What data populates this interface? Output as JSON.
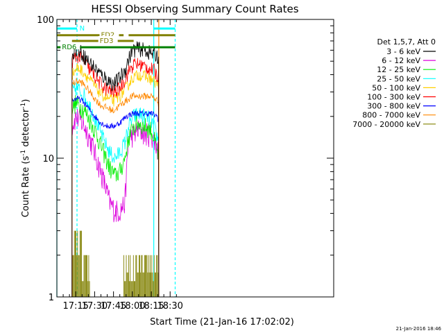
{
  "chart_data": {
    "type": "line",
    "title": "HESSI Observing Summary Count Rates",
    "xlabel": "Start Time (21-Jan-16 17:02:02)",
    "ylabel_main": "Count Rate (s",
    "ylabel_sup1": "-1",
    "ylabel_mid": " detector",
    "ylabel_sup2": "-1",
    "ylabel_end": ")",
    "yscale": "log",
    "ylim": [
      1,
      100
    ],
    "xlim_min": [
      1020,
      1240
    ],
    "xticks": [
      {
        "t": 1035,
        "label": "17:15"
      },
      {
        "t": 1050,
        "label": "17:30"
      },
      {
        "t": 1065,
        "label": "17:45"
      },
      {
        "t": 1080,
        "label": "18:00"
      },
      {
        "t": 1095,
        "label": "18:15"
      },
      {
        "t": 1110,
        "label": "18:30"
      }
    ],
    "yticks": [
      {
        "v": 1,
        "label": "1"
      },
      {
        "v": 10,
        "label": "10"
      },
      {
        "v": 100,
        "label": "100"
      }
    ],
    "legend_header": "Det 1,5,7, Att 0",
    "series": [
      {
        "name": "3 - 6 keV",
        "color": "#000000",
        "start": 1032,
        "end": 1101,
        "noise": 0.13,
        "knots": [
          [
            1032,
            58
          ],
          [
            1036,
            62
          ],
          [
            1040,
            57
          ],
          [
            1045,
            50
          ],
          [
            1050,
            45
          ],
          [
            1055,
            40
          ],
          [
            1060,
            37
          ],
          [
            1065,
            34
          ],
          [
            1070,
            38
          ],
          [
            1074,
            43
          ],
          [
            1077,
            52
          ],
          [
            1080,
            60
          ],
          [
            1085,
            62
          ],
          [
            1090,
            60
          ],
          [
            1095,
            57
          ],
          [
            1100,
            55
          ],
          [
            1101,
            50
          ]
        ]
      },
      {
        "name": "6 - 12 keV",
        "color": "#dd00dd",
        "start": 1032,
        "end": 1101,
        "noise": 0.2,
        "knots": [
          [
            1032,
            17
          ],
          [
            1035,
            20
          ],
          [
            1038,
            19
          ],
          [
            1042,
            17
          ],
          [
            1046,
            14
          ],
          [
            1050,
            11
          ],
          [
            1054,
            8.5
          ],
          [
            1058,
            6.5
          ],
          [
            1062,
            4.8
          ],
          [
            1066,
            4.2
          ],
          [
            1070,
            4.2
          ],
          [
            1074,
            4.8
          ],
          [
            1077,
            14
          ],
          [
            1081,
            15
          ],
          [
            1085,
            16
          ],
          [
            1090,
            15
          ],
          [
            1095,
            15
          ],
          [
            1098,
            13
          ],
          [
            1101,
            11
          ]
        ]
      },
      {
        "name": "12 - 25 keV",
        "color": "#00ee00",
        "start": 1032,
        "end": 1101,
        "noise": 0.16,
        "knots": [
          [
            1032,
            23
          ],
          [
            1035,
            25
          ],
          [
            1038,
            24
          ],
          [
            1042,
            22
          ],
          [
            1046,
            19
          ],
          [
            1050,
            16
          ],
          [
            1054,
            13
          ],
          [
            1058,
            10.5
          ],
          [
            1062,
            8.5
          ],
          [
            1066,
            7.5
          ],
          [
            1070,
            8
          ],
          [
            1074,
            10
          ],
          [
            1077,
            14
          ],
          [
            1081,
            17
          ],
          [
            1085,
            18
          ],
          [
            1090,
            17
          ],
          [
            1095,
            16
          ],
          [
            1098,
            13
          ],
          [
            1101,
            10
          ]
        ]
      },
      {
        "name": "25 - 50 keV",
        "color": "#00ffff",
        "start": 1032,
        "end": 1101,
        "noise": 0.14,
        "knots": [
          [
            1032,
            30
          ],
          [
            1035,
            32
          ],
          [
            1038,
            31
          ],
          [
            1042,
            28
          ],
          [
            1046,
            24
          ],
          [
            1050,
            20
          ],
          [
            1054,
            16
          ],
          [
            1058,
            13
          ],
          [
            1062,
            11
          ],
          [
            1066,
            10
          ],
          [
            1070,
            11
          ],
          [
            1074,
            13
          ],
          [
            1077,
            17
          ],
          [
            1081,
            20
          ],
          [
            1085,
            21
          ],
          [
            1090,
            20
          ],
          [
            1095,
            19
          ],
          [
            1098,
            16
          ],
          [
            1101,
            13
          ]
        ]
      },
      {
        "name": "50 - 100 keV",
        "color": "#ffd000",
        "start": 1032,
        "end": 1101,
        "noise": 0.1,
        "knots": [
          [
            1032,
            40
          ],
          [
            1036,
            45
          ],
          [
            1040,
            43
          ],
          [
            1045,
            38
          ],
          [
            1050,
            33
          ],
          [
            1055,
            29
          ],
          [
            1060,
            27
          ],
          [
            1065,
            26
          ],
          [
            1070,
            28
          ],
          [
            1075,
            32
          ],
          [
            1080,
            38
          ],
          [
            1085,
            40
          ],
          [
            1090,
            39
          ],
          [
            1095,
            37
          ],
          [
            1100,
            34
          ],
          [
            1101,
            31
          ]
        ]
      },
      {
        "name": "100 - 300 keV",
        "color": "#ff0000",
        "start": 1032,
        "end": 1101,
        "noise": 0.12,
        "knots": [
          [
            1032,
            50
          ],
          [
            1036,
            55
          ],
          [
            1040,
            52
          ],
          [
            1045,
            45
          ],
          [
            1050,
            39
          ],
          [
            1055,
            34
          ],
          [
            1060,
            31
          ],
          [
            1065,
            30
          ],
          [
            1070,
            32
          ],
          [
            1074,
            37
          ],
          [
            1078,
            44
          ],
          [
            1082,
            48
          ],
          [
            1087,
            47
          ],
          [
            1092,
            45
          ],
          [
            1097,
            43
          ],
          [
            1101,
            38
          ]
        ]
      },
      {
        "name": "300 - 800 keV",
        "color": "#0000ff",
        "start": 1032,
        "end": 1101,
        "noise": 0.05,
        "knots": [
          [
            1032,
            26
          ],
          [
            1036,
            27
          ],
          [
            1040,
            26
          ],
          [
            1045,
            23
          ],
          [
            1050,
            20
          ],
          [
            1055,
            18
          ],
          [
            1060,
            17
          ],
          [
            1065,
            17
          ],
          [
            1070,
            18
          ],
          [
            1075,
            20
          ],
          [
            1080,
            21
          ],
          [
            1085,
            21
          ],
          [
            1090,
            21
          ],
          [
            1095,
            21
          ],
          [
            1100,
            20
          ],
          [
            1101,
            18
          ]
        ]
      },
      {
        "name": "800 - 7000 keV",
        "color": "#ff8800",
        "start": 1032,
        "end": 1101,
        "noise": 0.06,
        "knots": [
          [
            1032,
            34
          ],
          [
            1036,
            36
          ],
          [
            1040,
            35
          ],
          [
            1045,
            31
          ],
          [
            1050,
            27
          ],
          [
            1055,
            24
          ],
          [
            1060,
            23
          ],
          [
            1065,
            22
          ],
          [
            1070,
            24
          ],
          [
            1075,
            26
          ],
          [
            1080,
            28
          ],
          [
            1085,
            28
          ],
          [
            1090,
            28
          ],
          [
            1095,
            28
          ],
          [
            1100,
            26
          ],
          [
            1101,
            24
          ]
        ]
      },
      {
        "name": "7000 - 20000 keV",
        "color": "#808000",
        "start": 1032,
        "end": 1101,
        "noise": 0,
        "knots": [
          [
            1032,
            2
          ],
          [
            1101,
            2
          ]
        ]
      }
    ],
    "flags": [
      {
        "label": "N",
        "color": "#00ffff",
        "y": 86,
        "segments": [
          [
            1020,
            1036
          ],
          [
            1097,
            1114
          ]
        ],
        "label_at": 1038
      },
      {
        "label": "FD2",
        "color": "#808000",
        "y": 77,
        "segments": [
          [
            1020,
            1073
          ],
          [
            1077,
            1114
          ]
        ],
        "label_at": 1055
      },
      {
        "label": "FD3",
        "color": "#808000",
        "y": 70,
        "segments": [
          [
            1032,
            1054
          ],
          [
            1062,
            1081
          ]
        ],
        "label_at": 1054
      },
      {
        "label": "RD6",
        "color": "#008000",
        "y": 63,
        "segments": [
          [
            1020,
            1114
          ]
        ],
        "label_at": 1024
      }
    ],
    "eclipse_markers": [
      {
        "color": "#00ffff",
        "times": [
          1020,
          1097
        ],
        "style": "solid"
      },
      {
        "color": "#00ffff",
        "times": [
          1036,
          1114
        ],
        "style": "dashed"
      },
      {
        "color": "#ff8800",
        "times": [
          1101
        ],
        "style": "solid"
      }
    ],
    "timestamp": "21-Jan-2016 18:46"
  }
}
